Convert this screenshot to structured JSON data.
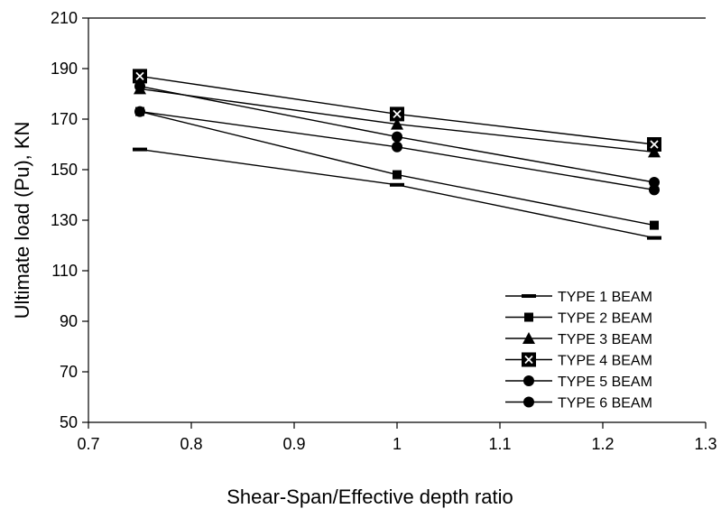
{
  "chart_data": {
    "type": "line",
    "title": "",
    "xlabel": "Shear-Span/Effective depth ratio",
    "ylabel": "Ultimate load (Pu), KN",
    "xlim": [
      0.7,
      1.3
    ],
    "ylim": [
      50,
      210
    ],
    "xticks": [
      "0.7",
      "0.8",
      "0.9",
      "1",
      "1.1",
      "1.2",
      "1.3"
    ],
    "yticks": [
      "50",
      "70",
      "90",
      "110",
      "130",
      "150",
      "170",
      "190",
      "210"
    ],
    "grid": false,
    "legend_position": "bottom-right",
    "x": [
      0.75,
      1.0,
      1.25
    ],
    "series": [
      {
        "name": "TYPE 1 BEAM",
        "marker": "dash",
        "values": [
          158,
          144,
          123
        ]
      },
      {
        "name": "TYPE 2 BEAM",
        "marker": "square",
        "values": [
          173,
          148,
          128
        ]
      },
      {
        "name": "TYPE 3 BEAM",
        "marker": "triangle",
        "values": [
          182,
          168,
          157
        ]
      },
      {
        "name": "TYPE 4 BEAM",
        "marker": "square-x",
        "values": [
          187,
          172,
          160
        ]
      },
      {
        "name": "TYPE 5 BEAM",
        "marker": "circle",
        "values": [
          183,
          163,
          145
        ]
      },
      {
        "name": "TYPE 6 BEAM",
        "marker": "circle",
        "values": [
          173,
          159,
          142
        ]
      }
    ],
    "colors": {
      "line": "#000000",
      "background": "#ffffff"
    }
  }
}
